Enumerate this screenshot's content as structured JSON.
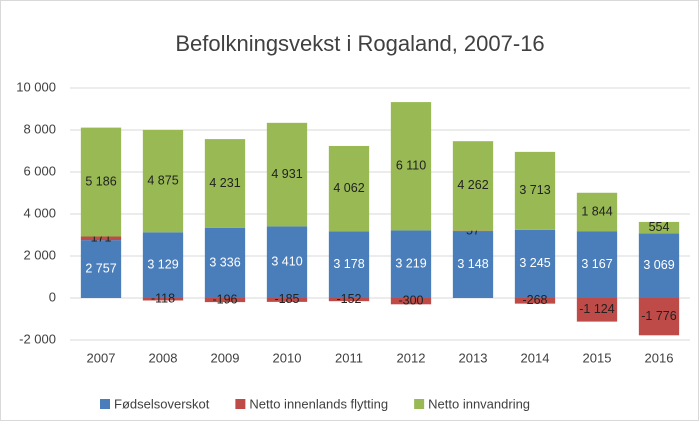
{
  "chart_data": {
    "type": "stacked_bar",
    "title": "Befolkningsvekst i Rogaland, 2007-16",
    "categories": [
      "2007",
      "2008",
      "2009",
      "2010",
      "2011",
      "2012",
      "2013",
      "2014",
      "2015",
      "2016"
    ],
    "series": [
      {
        "name": "Fødselsoverskot",
        "color": "#4a7ebb",
        "values": [
          2757,
          3129,
          3336,
          3410,
          3178,
          3219,
          3148,
          3245,
          3167,
          3069
        ],
        "value_labels": [
          "2 757",
          "3 129",
          "3 336",
          "3 410",
          "3 178",
          "3 219",
          "3 148",
          "3 245",
          "3 167",
          "3 069"
        ]
      },
      {
        "name": "Netto innenlands flytting",
        "color": "#be4b48",
        "values": [
          171,
          -118,
          -196,
          -185,
          -152,
          -300,
          57,
          -268,
          -1124,
          -1776
        ],
        "value_labels": [
          "171",
          "-118",
          "-196",
          "-185",
          "-152",
          "-300",
          "57",
          "-268",
          "-1 124",
          "-1 776"
        ]
      },
      {
        "name": "Netto innvandring",
        "color": "#98b954",
        "values": [
          5186,
          4875,
          4231,
          4931,
          4062,
          6110,
          4262,
          3713,
          1844,
          554
        ],
        "value_labels": [
          "5 186",
          "4 875",
          "4 231",
          "4 931",
          "4 062",
          "6 110",
          "4 262",
          "3 713",
          "1 844",
          "554"
        ]
      }
    ],
    "ylim": [
      -2000,
      10000
    ],
    "yticks": [
      {
        "value": -2000,
        "label": "-2 000"
      },
      0,
      {
        "value": 2000,
        "label": "2 000"
      },
      {
        "value": 4000,
        "label": "4 000"
      },
      {
        "value": 6000,
        "label": "6 000"
      },
      {
        "value": 8000,
        "label": "8 000"
      },
      {
        "value": 10000,
        "label": "10 000"
      }
    ],
    "grid": true,
    "legend": "bottom"
  }
}
